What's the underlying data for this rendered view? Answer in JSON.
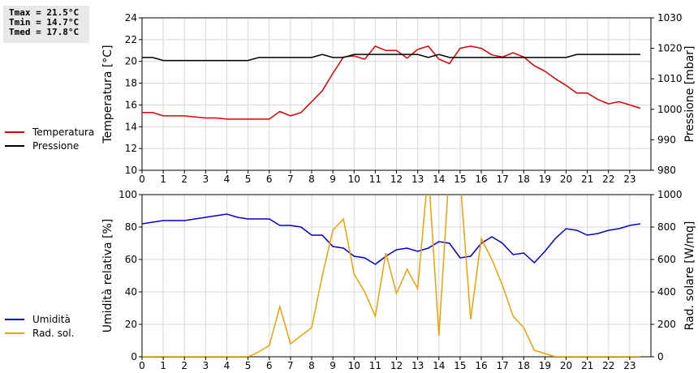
{
  "stats": {
    "tmax": "Tmax = 21.5°C",
    "tmin": "Tmin = 14.7°C",
    "tmed": "Tmed = 17.8°C"
  },
  "legend_top": [
    {
      "label": "Temperatura",
      "color": "#dd0000"
    },
    {
      "label": "Pressione",
      "color": "#000000"
    }
  ],
  "legend_bottom": [
    {
      "label": "Umidità",
      "color": "#0000cc"
    },
    {
      "label": "Rad. sol.",
      "color": "#f0a000"
    }
  ],
  "chart_data": [
    {
      "type": "line",
      "xlim": [
        0,
        24
      ],
      "xticks": [
        0,
        1,
        2,
        3,
        4,
        5,
        6,
        7,
        8,
        9,
        10,
        11,
        12,
        13,
        14,
        15,
        16,
        17,
        18,
        19,
        20,
        21,
        22,
        23
      ],
      "ylabel": "Temperatura [°C]",
      "ylim": [
        10,
        24
      ],
      "yticks": [
        10,
        12,
        14,
        16,
        18,
        20,
        22,
        24
      ],
      "y2label": "Pressione [mbar]",
      "y2lim": [
        980,
        1030
      ],
      "y2ticks": [
        980,
        990,
        1000,
        1010,
        1020,
        1030
      ],
      "grid": true,
      "series": [
        {
          "name": "Temperatura",
          "axis": "left",
          "color": "#dd0000",
          "x": [
            0,
            0.5,
            1,
            1.5,
            2,
            2.5,
            3,
            3.5,
            4,
            4.5,
            5,
            5.5,
            6,
            6.5,
            7,
            7.5,
            8,
            8.5,
            9,
            9.5,
            10,
            10.5,
            11,
            11.5,
            12,
            12.5,
            13,
            13.5,
            14,
            14.5,
            15,
            15.5,
            16,
            16.5,
            17,
            17.5,
            18,
            18.5,
            19,
            19.5,
            20,
            20.5,
            21,
            21.5,
            22,
            22.5,
            23,
            23.5
          ],
          "values": [
            15.3,
            15.3,
            15.0,
            15.0,
            15.0,
            14.9,
            14.8,
            14.8,
            14.7,
            14.7,
            14.7,
            14.7,
            14.7,
            15.4,
            15.0,
            15.3,
            16.3,
            17.3,
            18.9,
            20.4,
            20.5,
            20.2,
            21.4,
            21.0,
            21.0,
            20.3,
            21.1,
            21.4,
            20.2,
            19.8,
            21.2,
            21.4,
            21.2,
            20.6,
            20.4,
            20.8,
            20.4,
            19.6,
            19.1,
            18.4,
            17.8,
            17.1,
            17.1,
            16.5,
            16.1,
            16.3,
            16.0,
            15.7
          ]
        },
        {
          "name": "Pressione",
          "axis": "right",
          "color": "#000000",
          "x": [
            0,
            0.5,
            1,
            1.5,
            2,
            2.5,
            3,
            3.5,
            4,
            4.5,
            5,
            5.5,
            6,
            6.5,
            7,
            7.5,
            8,
            8.5,
            9,
            9.5,
            10,
            10.5,
            11,
            11.5,
            12,
            12.5,
            13,
            13.5,
            14,
            14.5,
            15,
            15.5,
            16,
            16.5,
            17,
            17.5,
            18,
            18.5,
            19,
            19.5,
            20,
            20.5,
            21,
            21.5,
            22,
            22.5,
            23,
            23.5
          ],
          "values": [
            1017,
            1017,
            1016,
            1016,
            1016,
            1016,
            1016,
            1016,
            1016,
            1016,
            1016,
            1017,
            1017,
            1017,
            1017,
            1017,
            1017,
            1018,
            1017,
            1017,
            1018,
            1018,
            1018,
            1018,
            1018,
            1018,
            1018,
            1017,
            1018,
            1017,
            1017,
            1017,
            1017,
            1017,
            1017,
            1017,
            1017,
            1017,
            1017,
            1017,
            1017,
            1018,
            1018,
            1018,
            1018,
            1018,
            1018,
            1018
          ]
        }
      ]
    },
    {
      "type": "line",
      "xlim": [
        0,
        24
      ],
      "xticks": [
        0,
        1,
        2,
        3,
        4,
        5,
        6,
        7,
        8,
        9,
        10,
        11,
        12,
        13,
        14,
        15,
        16,
        17,
        18,
        19,
        20,
        21,
        22,
        23
      ],
      "ylabel": "Umidità relativa [%]",
      "ylim": [
        0,
        100
      ],
      "yticks": [
        0,
        20,
        40,
        60,
        80,
        100
      ],
      "y2label": "Rad. solare [W/mq]",
      "y2lim": [
        0,
        1000
      ],
      "y2ticks": [
        0,
        200,
        400,
        600,
        800,
        1000
      ],
      "grid": true,
      "series": [
        {
          "name": "Umidità",
          "axis": "left",
          "color": "#0000cc",
          "x": [
            0,
            0.5,
            1,
            1.5,
            2,
            2.5,
            3,
            3.5,
            4,
            4.5,
            5,
            5.5,
            6,
            6.5,
            7,
            7.5,
            8,
            8.5,
            9,
            9.5,
            10,
            10.5,
            11,
            11.5,
            12,
            12.5,
            13,
            13.5,
            14,
            14.5,
            15,
            15.5,
            16,
            16.5,
            17,
            17.5,
            18,
            18.5,
            19,
            19.5,
            20,
            20.5,
            21,
            21.5,
            22,
            22.5,
            23,
            23.5
          ],
          "values": [
            82,
            83,
            84,
            84,
            84,
            85,
            86,
            87,
            88,
            86,
            85,
            85,
            85,
            81,
            81,
            80,
            75,
            75,
            68,
            67,
            62,
            61,
            57,
            62,
            66,
            67,
            65,
            67,
            71,
            70,
            61,
            62,
            70,
            74,
            70,
            63,
            64,
            58,
            65,
            73,
            79,
            78,
            75,
            76,
            78,
            79,
            81,
            82
          ]
        },
        {
          "name": "Rad. sol.",
          "axis": "right",
          "color": "#f0a000",
          "x": [
            0,
            0.5,
            1,
            1.5,
            2,
            2.5,
            3,
            3.5,
            4,
            4.5,
            5,
            5.5,
            6,
            6.5,
            7,
            7.5,
            8,
            8.5,
            9,
            9.5,
            10,
            10.5,
            11,
            11.5,
            12,
            12.5,
            13,
            13.5,
            14,
            14.5,
            15,
            15.5,
            16,
            16.5,
            17,
            17.5,
            18,
            18.5,
            19,
            19.5,
            20,
            20.5,
            21,
            21.5,
            22,
            22.5,
            23,
            23.5
          ],
          "values": [
            0,
            0,
            0,
            0,
            0,
            0,
            0,
            0,
            0,
            0,
            0,
            30,
            70,
            310,
            80,
            130,
            180,
            500,
            780,
            850,
            510,
            400,
            250,
            640,
            390,
            540,
            420,
            1150,
            130,
            1180,
            1100,
            230,
            730,
            600,
            440,
            250,
            180,
            40,
            20,
            0,
            0,
            0,
            0,
            0,
            0,
            0,
            0,
            0
          ]
        }
      ]
    }
  ]
}
